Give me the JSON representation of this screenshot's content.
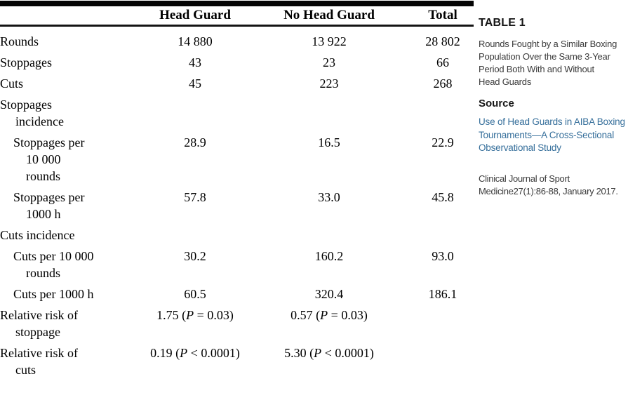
{
  "colors": {
    "link": "#366f9b",
    "table_rule": "#050505",
    "table_text": "#000000",
    "sidebar_text": "#3a3a3a"
  },
  "table": {
    "columns": {
      "head_guard": "Head Guard",
      "no_head_guard": "No Head Guard",
      "total": "Total"
    },
    "rows": [
      {
        "label": "Rounds",
        "head_guard": "14 880",
        "no_head_guard": "13 922",
        "total": "28 802"
      },
      {
        "label": "Stoppages",
        "head_guard": "43",
        "no_head_guard": "23",
        "total": "66"
      },
      {
        "label": "Cuts",
        "head_guard": "45",
        "no_head_guard": "223",
        "total": "268"
      },
      {
        "label": "Stoppages\nincidence",
        "head_guard": "",
        "no_head_guard": "",
        "total": ""
      },
      {
        "label": "Stoppages per\n10 000\nrounds",
        "head_guard": "28.9",
        "no_head_guard": "16.5",
        "total": "22.9"
      },
      {
        "label": "Stoppages per\n1000 h",
        "head_guard": "57.8",
        "no_head_guard": "33.0",
        "total": "45.8"
      },
      {
        "label": "Cuts incidence",
        "head_guard": "",
        "no_head_guard": "",
        "total": ""
      },
      {
        "label": "Cuts per 10 000\nrounds",
        "head_guard": "30.2",
        "no_head_guard": "160.2",
        "total": "93.0"
      },
      {
        "label": "Cuts per 1000 h",
        "head_guard": "60.5",
        "no_head_guard": "320.4",
        "total": "186.1"
      },
      {
        "label": "Relative risk of\nstoppage",
        "hg_pre": "1.75 (",
        "hg_p": "P",
        "hg_post": " = 0.03)",
        "nhg_pre": "0.57 (",
        "nhg_p": "P",
        "nhg_post": " = 0.03)",
        "total": ""
      },
      {
        "label": "Relative risk of\ncuts",
        "hg_pre": "0.19 (",
        "hg_p": "P",
        "hg_post": " < 0.0001)",
        "nhg_pre": "5.30 (",
        "nhg_p": "P",
        "nhg_post": " < 0.0001)",
        "total": ""
      }
    ]
  },
  "panel": {
    "table_number": "TABLE 1",
    "caption": "Rounds Fought by a Similar Boxing\nPopulation Over the Same 3-Year\nPeriod Both With and Without\nHead Guards",
    "source_label": "Source",
    "source_link": "Use of Head Guards in AIBA Boxing\nTournaments—A Cross-Sectional\nObservational Study",
    "citation": "Clinical Journal of Sport\nMedicine27(1):86-88, January 2017."
  }
}
